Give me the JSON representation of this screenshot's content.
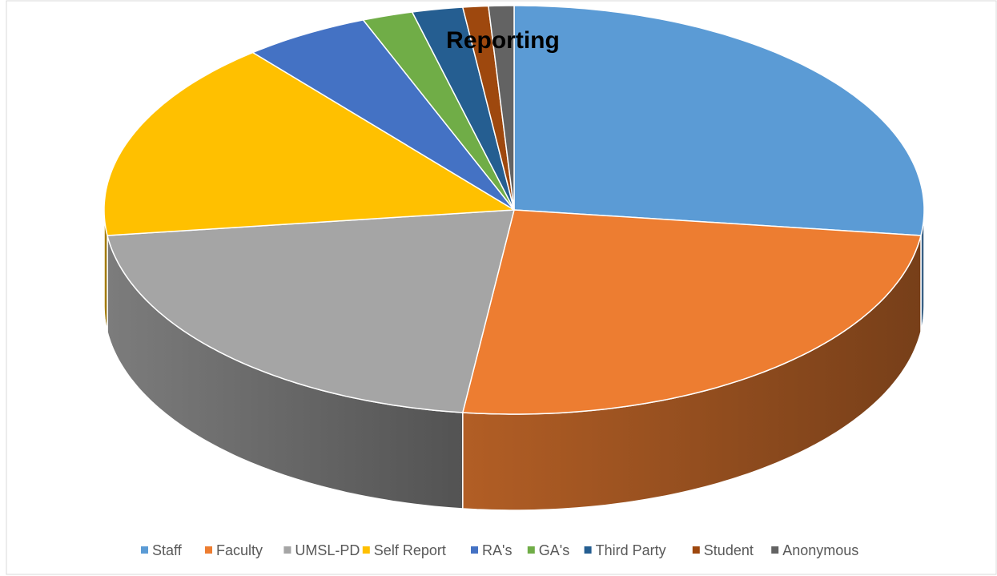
{
  "chart_data": {
    "type": "pie",
    "title": "Reporting",
    "categories": [
      "Staff",
      "Faculty",
      "UMSL-PD",
      "Self Report",
      "RA's",
      "GA's",
      "Third Party",
      "Student",
      "Anonymous"
    ],
    "values": [
      27,
      25,
      21,
      16,
      5,
      2,
      2,
      1,
      1
    ],
    "colors": [
      "#5b9bd5",
      "#ed7d31",
      "#a5a5a5",
      "#ffc000",
      "#4472c4",
      "#70ad47",
      "#255e91",
      "#9e480e",
      "#636363"
    ],
    "legend": "bottom"
  }
}
